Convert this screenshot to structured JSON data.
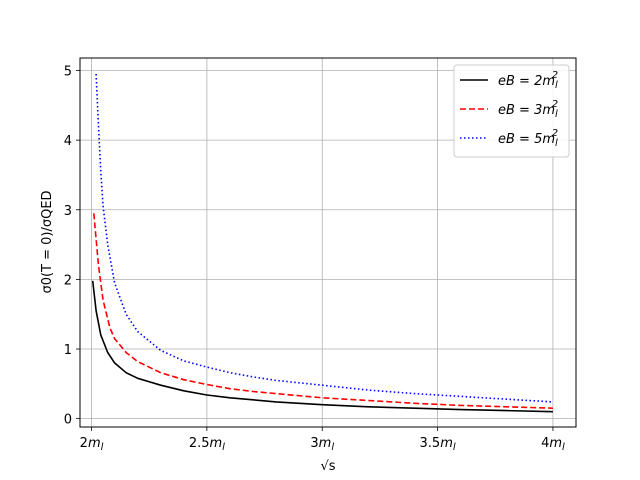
{
  "chart_data": {
    "type": "line",
    "x_unit": "m_l",
    "xlabel": "√s",
    "ylabel": "σ0(T = 0)/σQED",
    "xlim": [
      1.95,
      4.1
    ],
    "ylim": [
      -0.12,
      5.18
    ],
    "grid": true,
    "legend_placement": "top-right",
    "xticks": [
      {
        "value": 2.0,
        "coef": "2",
        "sub": "l"
      },
      {
        "value": 2.5,
        "coef": "2.5",
        "sub": "l"
      },
      {
        "value": 3.0,
        "coef": "3",
        "sub": "l"
      },
      {
        "value": 3.5,
        "coef": "3.5",
        "sub": "l"
      },
      {
        "value": 4.0,
        "coef": "4",
        "sub": "l"
      }
    ],
    "yticks": [
      {
        "value": 0,
        "label": "0"
      },
      {
        "value": 1,
        "label": "1"
      },
      {
        "value": 2,
        "label": "2"
      },
      {
        "value": 3,
        "label": "3"
      },
      {
        "value": 4,
        "label": "4"
      },
      {
        "value": 5,
        "label": "5"
      }
    ],
    "series": [
      {
        "name": "eB = 2m_l^2",
        "legend": {
          "lhs": "eB",
          "coef": "2",
          "sub": "l",
          "sup": "2"
        },
        "color": "#000000",
        "style": "solid",
        "x": [
          2.005,
          2.02,
          2.04,
          2.07,
          2.1,
          2.15,
          2.2,
          2.3,
          2.4,
          2.5,
          2.6,
          2.7,
          2.8,
          3.0,
          3.2,
          3.4,
          3.6,
          3.8,
          4.0
        ],
        "y": [
          1.98,
          1.55,
          1.2,
          0.95,
          0.8,
          0.66,
          0.58,
          0.48,
          0.4,
          0.34,
          0.3,
          0.27,
          0.24,
          0.2,
          0.17,
          0.15,
          0.13,
          0.115,
          0.1
        ]
      },
      {
        "name": "eB = 3m_l^2",
        "legend": {
          "lhs": "eB",
          "coef": "3",
          "sub": "l",
          "sup": "2"
        },
        "color": "#ff0000",
        "style": "dashed",
        "x": [
          2.01,
          2.03,
          2.05,
          2.08,
          2.1,
          2.15,
          2.2,
          2.3,
          2.4,
          2.5,
          2.6,
          2.7,
          2.8,
          3.0,
          3.2,
          3.4,
          3.6,
          3.8,
          4.0
        ],
        "y": [
          2.95,
          2.2,
          1.7,
          1.3,
          1.15,
          0.95,
          0.82,
          0.66,
          0.56,
          0.49,
          0.43,
          0.39,
          0.36,
          0.3,
          0.26,
          0.22,
          0.19,
          0.17,
          0.15
        ]
      },
      {
        "name": "eB = 5m_l^2",
        "legend": {
          "lhs": "eB",
          "coef": "5",
          "sub": "l",
          "sup": "2"
        },
        "color": "#0000ff",
        "style": "dotted",
        "x": [
          2.02,
          2.03,
          2.04,
          2.05,
          2.07,
          2.1,
          2.15,
          2.2,
          2.3,
          2.4,
          2.5,
          2.6,
          2.7,
          2.8,
          3.0,
          3.2,
          3.4,
          3.6,
          3.8,
          4.0
        ],
        "y": [
          4.95,
          4.2,
          3.55,
          3.05,
          2.5,
          1.95,
          1.5,
          1.25,
          0.98,
          0.83,
          0.74,
          0.66,
          0.6,
          0.55,
          0.48,
          0.41,
          0.36,
          0.32,
          0.28,
          0.24
        ]
      }
    ]
  }
}
